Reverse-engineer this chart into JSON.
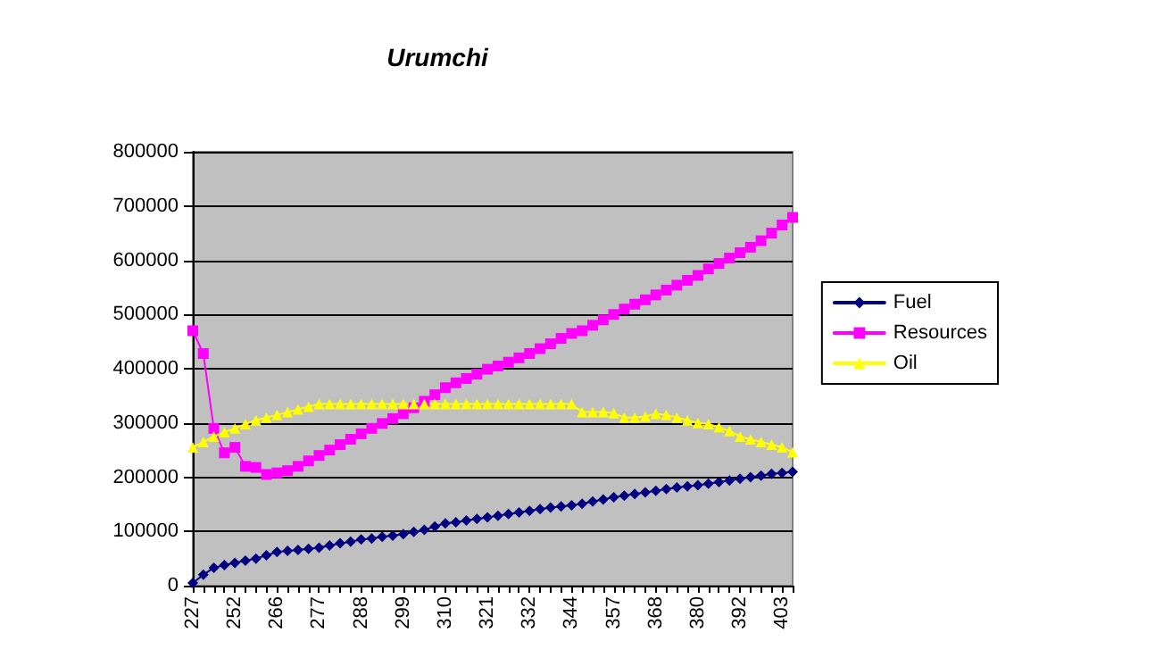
{
  "chart_data": {
    "type": "line",
    "title": "Urumchi",
    "categories": [
      "227",
      null,
      null,
      null,
      "252",
      null,
      null,
      null,
      "266",
      null,
      null,
      null,
      "277",
      null,
      null,
      null,
      "288",
      null,
      null,
      null,
      "299",
      null,
      null,
      null,
      "310",
      null,
      null,
      null,
      "321",
      null,
      null,
      null,
      "332",
      null,
      null,
      null,
      "344",
      null,
      null,
      null,
      "357",
      null,
      null,
      null,
      "368",
      null,
      null,
      null,
      "380",
      null,
      null,
      null,
      "392",
      null,
      null,
      null,
      "403",
      null
    ],
    "series": [
      {
        "name": "Fuel",
        "color": "#000080",
        "marker": "diamond",
        "values": [
          5000,
          20000,
          33000,
          38000,
          42000,
          46000,
          50000,
          56000,
          62000,
          64000,
          66000,
          68000,
          70000,
          74000,
          78000,
          81000,
          85000,
          87000,
          90000,
          92000,
          95000,
          99000,
          103000,
          109000,
          115000,
          117000,
          120000,
          123000,
          126000,
          129000,
          132000,
          135000,
          138000,
          141000,
          144000,
          146000,
          148000,
          151000,
          155000,
          159000,
          163000,
          166000,
          169000,
          172000,
          175000,
          178000,
          181000,
          183000,
          185000,
          188000,
          191000,
          194000,
          197000,
          200000,
          203000,
          206000,
          208000,
          210000
        ]
      },
      {
        "name": "Resources",
        "color": "#ff00ff",
        "marker": "square",
        "values": [
          470000,
          428000,
          290000,
          245000,
          255000,
          220000,
          218000,
          205000,
          208000,
          212000,
          220000,
          230000,
          240000,
          250000,
          260000,
          270000,
          280000,
          290000,
          299000,
          308000,
          317000,
          328000,
          340000,
          352000,
          365000,
          374000,
          382000,
          390000,
          399000,
          405000,
          412000,
          420000,
          428000,
          437000,
          446000,
          456000,
          465000,
          470000,
          480000,
          490000,
          500000,
          510000,
          519000,
          527000,
          536000,
          545000,
          554000,
          563000,
          572000,
          584000,
          594000,
          604000,
          614000,
          624000,
          636000,
          650000,
          665000,
          679000
        ]
      },
      {
        "name": "Oil",
        "color": "#ffff00",
        "marker": "triangle",
        "values": [
          255000,
          265000,
          275000,
          283000,
          290000,
          298000,
          305000,
          310000,
          315000,
          320000,
          325000,
          330000,
          335000,
          335000,
          335000,
          335000,
          335000,
          335000,
          335000,
          335000,
          335000,
          335000,
          335000,
          335000,
          335000,
          335000,
          335000,
          335000,
          335000,
          335000,
          335000,
          335000,
          335000,
          335000,
          335000,
          335000,
          335000,
          320000,
          320000,
          320000,
          318000,
          310000,
          310000,
          312000,
          317000,
          315000,
          310000,
          305000,
          300000,
          298000,
          292000,
          285000,
          275000,
          270000,
          265000,
          260000,
          255000,
          246000
        ]
      }
    ],
    "ylim": [
      0,
      800000
    ],
    "yticks": [
      0,
      100000,
      200000,
      300000,
      400000,
      500000,
      600000,
      700000,
      800000
    ],
    "grid": "y",
    "legend": "right",
    "line_style": "solid"
  }
}
